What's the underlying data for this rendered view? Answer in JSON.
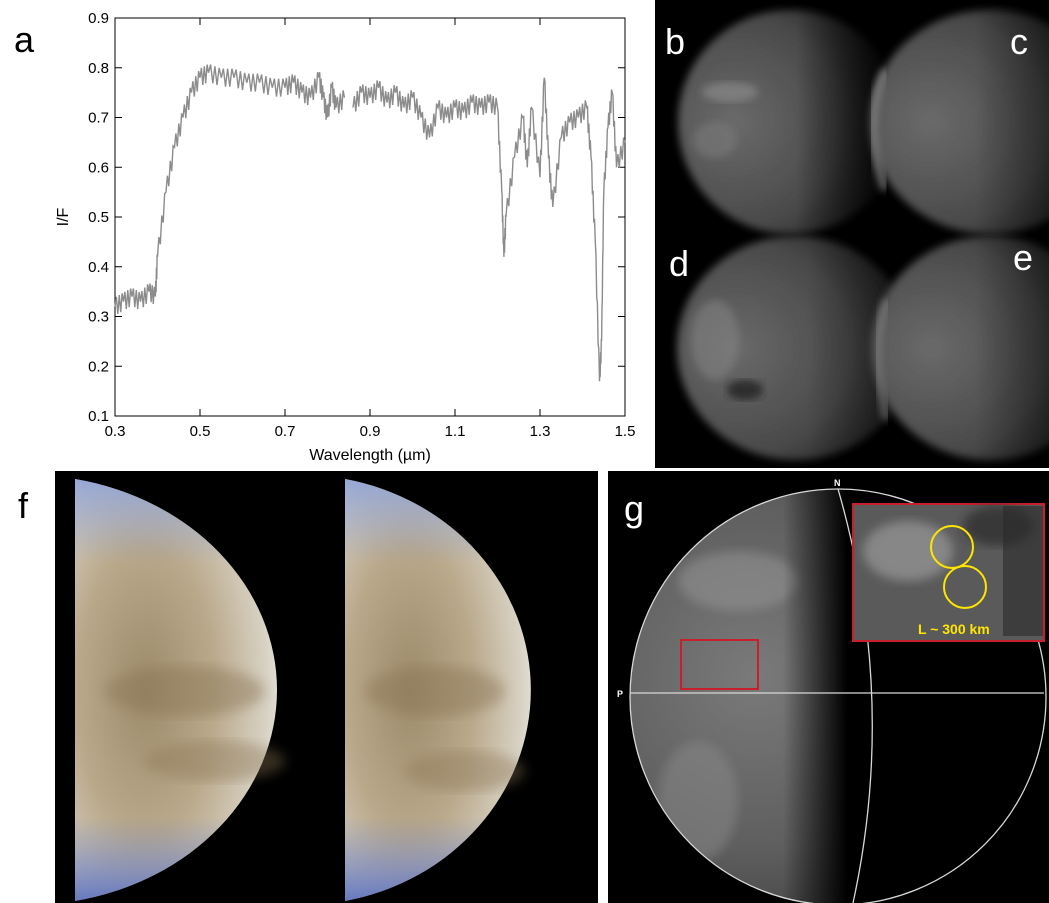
{
  "panels": {
    "a": "a",
    "b": "b",
    "c": "c",
    "d": "d",
    "e": "e",
    "f": "f",
    "g": "g"
  },
  "chart_data": {
    "type": "line",
    "xlabel": "Wavelength (µm)",
    "ylabel": "I/F",
    "xlim": [
      0.3,
      1.5
    ],
    "ylim": [
      0.1,
      0.9
    ],
    "xticks": [
      0.3,
      0.5,
      0.7,
      0.9,
      1.1,
      1.3,
      1.5
    ],
    "yticks": [
      0.1,
      0.2,
      0.3,
      0.4,
      0.5,
      0.6,
      0.7,
      0.8,
      0.9
    ],
    "grid": false,
    "color": "#8c8c8c",
    "segments": [
      {
        "x": [
          0.3,
          0.32,
          0.34,
          0.36,
          0.38,
          0.395,
          0.4,
          0.42,
          0.44,
          0.46,
          0.48,
          0.5,
          0.52,
          0.55,
          0.58,
          0.61,
          0.64,
          0.67,
          0.7,
          0.72,
          0.74,
          0.76,
          0.78,
          0.79,
          0.8,
          0.81,
          0.82,
          0.84
        ],
        "y": [
          0.32,
          0.33,
          0.34,
          0.33,
          0.35,
          0.34,
          0.42,
          0.55,
          0.64,
          0.7,
          0.75,
          0.78,
          0.79,
          0.78,
          0.78,
          0.77,
          0.77,
          0.76,
          0.76,
          0.77,
          0.75,
          0.74,
          0.78,
          0.74,
          0.7,
          0.76,
          0.72,
          0.74
        ]
      },
      {
        "x": [
          0.86,
          0.88,
          0.9,
          0.92,
          0.94,
          0.96,
          0.98,
          1.0,
          1.02,
          1.04,
          1.06,
          1.08,
          1.1,
          1.12,
          1.14,
          1.16,
          1.18,
          1.2
        ],
        "y": [
          0.72,
          0.75,
          0.74,
          0.76,
          0.73,
          0.75,
          0.72,
          0.74,
          0.7,
          0.66,
          0.72,
          0.7,
          0.72,
          0.71,
          0.73,
          0.72,
          0.73,
          0.72
        ]
      },
      {
        "x": [
          1.2,
          1.21,
          1.215,
          1.22,
          1.24,
          1.26,
          1.27,
          1.28,
          1.3,
          1.31,
          1.32,
          1.33,
          1.35,
          1.37,
          1.39,
          1.41,
          1.42,
          1.43,
          1.44,
          1.445,
          1.45,
          1.46,
          1.47,
          1.48,
          1.5
        ],
        "y": [
          0.72,
          0.55,
          0.42,
          0.5,
          0.62,
          0.7,
          0.6,
          0.72,
          0.58,
          0.78,
          0.62,
          0.52,
          0.66,
          0.69,
          0.7,
          0.72,
          0.62,
          0.45,
          0.17,
          0.25,
          0.55,
          0.68,
          0.75,
          0.6,
          0.65
        ]
      }
    ]
  },
  "panel_g": {
    "north_label": "N",
    "p_label": "P",
    "inset_label": "L ~ 300 km",
    "box_color": "#c8202a",
    "circle_color": "#ffe600",
    "label_color": "#ffe600"
  }
}
